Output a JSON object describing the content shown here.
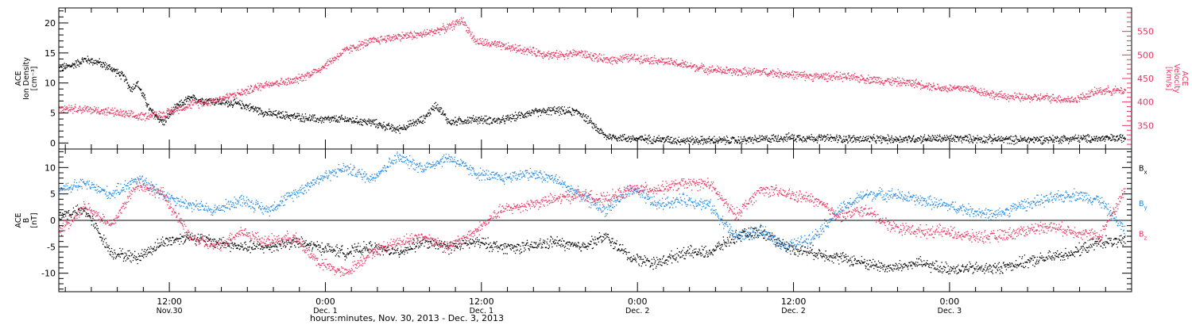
{
  "chart_data": [
    {
      "type": "scatter",
      "panel": "top",
      "ylabel_left": [
        "ACE",
        "Ion Density",
        "[cm⁻³]"
      ],
      "ylabel_right": [
        "ACE",
        "Velocity",
        "[km/s]"
      ],
      "ylim_left": [
        -1,
        22.5
      ],
      "ylim_right": [
        300,
        600
      ],
      "yticks_left": [
        0,
        5,
        10,
        15,
        20
      ],
      "yticks_right": [
        350,
        400,
        450,
        500,
        550
      ],
      "color_left": "#000000",
      "color_right": "#e8335f",
      "series": [
        {
          "name": "",
          "axis": "left",
          "color": "#000000",
          "x": [
            0,
            1,
            2,
            3,
            4,
            5,
            5.5,
            6,
            7,
            8,
            9,
            10,
            12,
            14,
            16,
            18,
            20,
            22,
            24,
            26,
            28,
            29,
            30,
            31,
            32,
            34,
            36,
            38,
            40,
            42,
            44,
            46,
            48,
            50,
            52,
            54,
            56,
            58,
            60,
            62,
            64,
            66,
            68,
            70,
            72,
            74,
            76,
            78,
            80,
            82
          ],
          "y": [
            12.5,
            13,
            14,
            13.5,
            12.5,
            11,
            9,
            10,
            5.5,
            3.5,
            6,
            7.5,
            7,
            6.5,
            5,
            4.5,
            4,
            4,
            3.5,
            2.3,
            4,
            6.5,
            3.5,
            3.8,
            4,
            3.8,
            5,
            5.5,
            5.2,
            1.2,
            0.8,
            0.7,
            0.5,
            0.5,
            0.5,
            0.7,
            1.0,
            0.9,
            0.8,
            0.7,
            0.7,
            0.8,
            0.8,
            0.8,
            0.7,
            0.6,
            0.7,
            0.8,
            0.8,
            0.9
          ]
        },
        {
          "name": "",
          "axis": "right",
          "color": "#e8335f",
          "x": [
            0,
            2,
            4,
            6,
            8,
            10,
            12,
            14,
            16,
            18,
            20,
            22,
            23,
            24,
            26,
            28,
            30,
            31,
            32,
            34,
            36,
            38,
            40,
            42,
            44,
            46,
            48,
            50,
            52,
            54,
            56,
            58,
            60,
            62,
            64,
            66,
            68,
            70,
            72,
            74,
            76,
            78,
            80,
            82
          ],
          "y": [
            390,
            385,
            380,
            370,
            375,
            395,
            405,
            420,
            440,
            445,
            470,
            510,
            520,
            530,
            540,
            545,
            560,
            575,
            530,
            520,
            510,
            500,
            505,
            490,
            495,
            490,
            480,
            470,
            465,
            465,
            460,
            455,
            455,
            450,
            445,
            440,
            430,
            430,
            415,
            410,
            410,
            405,
            425,
            425
          ]
        }
      ]
    },
    {
      "type": "scatter",
      "panel": "bottom",
      "ylabel_left": [
        "ACE",
        "B",
        "[nT]"
      ],
      "ylim": [
        -13.5,
        13.5
      ],
      "yticks": [
        -10,
        -5,
        0,
        5,
        10
      ],
      "zero_line": true,
      "legend": [
        {
          "label": "Bx",
          "color": "#000000"
        },
        {
          "label": "By",
          "color": "#1e88e5"
        },
        {
          "label": "Bz",
          "color": "#e8335f"
        }
      ],
      "series": [
        {
          "name": "Bx",
          "color": "#000000",
          "x": [
            0,
            2,
            4,
            6,
            8,
            10,
            12,
            14,
            16,
            18,
            20,
            22,
            24,
            26,
            28,
            30,
            32,
            34,
            36,
            38,
            40,
            42,
            44,
            46,
            48,
            50,
            52,
            54,
            56,
            58,
            60,
            62,
            64,
            66,
            68,
            70,
            72,
            74,
            76,
            78,
            80,
            82
          ],
          "y": [
            1,
            2,
            -6,
            -7,
            -4,
            -3,
            -4,
            -5,
            -5,
            -4,
            -5,
            -6,
            -5,
            -6,
            -4,
            -5,
            -4,
            -5,
            -5,
            -4,
            -5,
            -3,
            -7,
            -8,
            -6,
            -6,
            -3,
            -2,
            -5,
            -6,
            -7,
            -8,
            -9,
            -8,
            -9,
            -9,
            -9,
            -8,
            -7,
            -6,
            -4,
            -4
          ]
        },
        {
          "name": "By",
          "color": "#1e88e5",
          "x": [
            0,
            2,
            4,
            6,
            8,
            10,
            12,
            14,
            16,
            18,
            20,
            22,
            24,
            26,
            28,
            30,
            32,
            34,
            36,
            38,
            40,
            42,
            44,
            46,
            48,
            50,
            52,
            54,
            56,
            58,
            60,
            62,
            64,
            66,
            68,
            70,
            72,
            74,
            76,
            78,
            80,
            82
          ],
          "y": [
            6,
            7,
            5,
            8,
            5,
            3,
            2,
            4,
            2,
            5,
            8,
            10,
            8,
            12,
            10,
            12,
            9,
            8,
            9,
            8,
            5,
            2,
            6,
            3,
            4,
            3,
            -3,
            -2,
            -5,
            -3,
            2,
            5,
            5,
            4,
            3,
            2,
            1,
            3,
            4,
            5,
            4,
            -2
          ]
        },
        {
          "name": "Bz",
          "color": "#e8335f",
          "x": [
            0,
            2,
            4,
            6,
            8,
            10,
            12,
            14,
            16,
            18,
            20,
            22,
            24,
            26,
            28,
            30,
            32,
            34,
            36,
            38,
            40,
            42,
            44,
            46,
            48,
            50,
            52,
            54,
            56,
            58,
            60,
            62,
            64,
            66,
            68,
            70,
            72,
            74,
            76,
            78,
            80,
            82
          ],
          "y": [
            -2,
            3,
            -1,
            7,
            5,
            -3,
            -5,
            -2,
            -4,
            -3,
            -8,
            -10,
            -6,
            -4,
            -3,
            -5,
            -2,
            2,
            3,
            4,
            5,
            4,
            6,
            6,
            7,
            7,
            1,
            6,
            5,
            4,
            1,
            2,
            -1,
            -2,
            -2,
            -3,
            -3,
            -2,
            -1,
            -2,
            -3,
            6
          ]
        }
      ]
    }
  ],
  "x_axis": {
    "range_hours": [
      0,
      82.5
    ],
    "tick_labels": [
      {
        "time": "12:00",
        "date": "Nov.30",
        "hour": 0
      },
      {
        "time": "0:00",
        "date": "Dec. 1",
        "hour": 0
      },
      {
        "time": "12:00",
        "date": "Dec. 1",
        "hour": 0
      },
      {
        "time": "0:00",
        "date": "Dec. 2",
        "hour": 0
      },
      {
        "time": "12:00",
        "date": "Dec. 2",
        "hour": 0
      },
      {
        "time": "0:00",
        "date": "Dec. 3",
        "hour": 0
      }
    ],
    "xlabel": "hours:minutes, Nov. 30, 2013 - Dec. 3, 2013"
  }
}
